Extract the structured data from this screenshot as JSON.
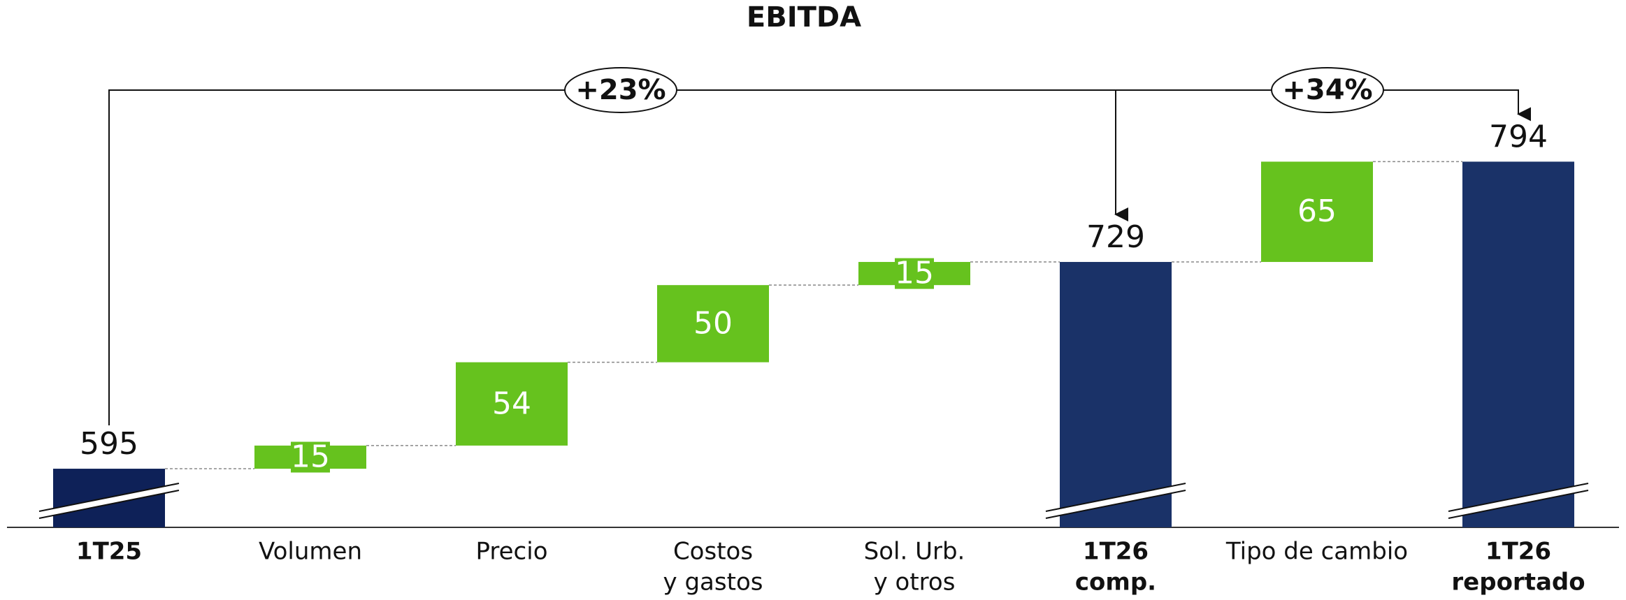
{
  "chart_data": {
    "type": "waterfall",
    "title": "EBITDA",
    "categories": [
      [
        "1T25"
      ],
      [
        "Volumen"
      ],
      [
        "Precio"
      ],
      [
        "Costos",
        "y gastos"
      ],
      [
        "Sol. Urb.",
        "y otros"
      ],
      [
        "1T26",
        "comp."
      ],
      [
        "Tipo de cambio"
      ],
      [
        "1T26",
        "reportado"
      ]
    ],
    "values": [
      595,
      15,
      54,
      50,
      15,
      729,
      65,
      794
    ],
    "kinds": [
      "total",
      "delta",
      "delta",
      "delta",
      "delta",
      "total",
      "delta",
      "total"
    ],
    "colors": [
      "#0e2158",
      "#66c21e",
      "#66c21e",
      "#66c21e",
      "#66c21e",
      "#1a3268",
      "#66c21e",
      "#1a3268"
    ],
    "ylim": [
      557,
      820
    ],
    "annotations": [
      "+23%",
      "+34%"
    ]
  }
}
